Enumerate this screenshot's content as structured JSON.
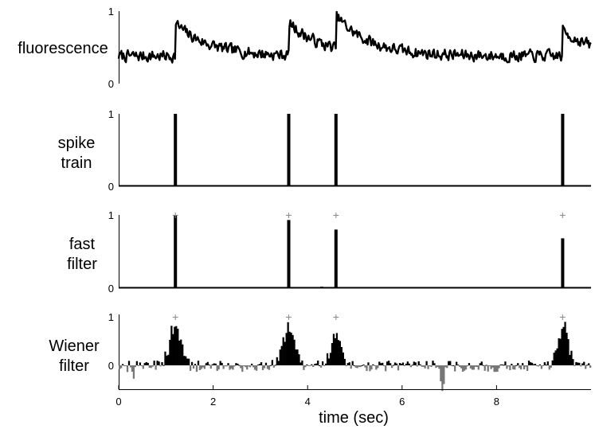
{
  "chart_data": {
    "type": "multi-panel",
    "xlabel": "time (sec)",
    "xlim": [
      0,
      10
    ],
    "xticks": [
      "0",
      "2",
      "4",
      "6",
      "8"
    ],
    "marker_symbol": "+",
    "colors": {
      "trace": "#000000",
      "negative": "#777777",
      "marker": "#888888"
    },
    "panels": [
      {
        "id": "fluorescence",
        "type": "line",
        "ylabel": [
          "fluorescence"
        ],
        "ylim": [
          0,
          1
        ],
        "yticks": [
          "0",
          "1"
        ],
        "noise_seed": 7,
        "baseline": 0.38,
        "noise_amplitude": 0.11,
        "decay_tau_sec": 0.7,
        "transients": [
          {
            "t": 1.2,
            "amp": 0.45
          },
          {
            "t": 3.6,
            "amp": 0.45
          },
          {
            "t": 4.6,
            "amp": 0.45
          },
          {
            "t": 9.4,
            "amp": 0.35
          }
        ]
      },
      {
        "id": "spike-train",
        "type": "bar",
        "ylabel": [
          "spike",
          "train"
        ],
        "ylim": [
          0,
          1
        ],
        "yticks": [
          "0",
          "1"
        ],
        "spikes": [
          {
            "t": 1.2,
            "value": 1
          },
          {
            "t": 3.6,
            "value": 1
          },
          {
            "t": 4.6,
            "value": 1
          },
          {
            "t": 9.4,
            "value": 1
          }
        ]
      },
      {
        "id": "fast-filter",
        "type": "bar",
        "ylabel": [
          "fast",
          "filter"
        ],
        "ylim": [
          0,
          1
        ],
        "yticks": [
          "0",
          "1"
        ],
        "markers_t": [
          1.2,
          3.6,
          4.6,
          9.4
        ],
        "spikes": [
          {
            "t": 1.2,
            "value": 0.99
          },
          {
            "t": 3.6,
            "value": 0.93
          },
          {
            "t": 4.3,
            "value": 0.02
          },
          {
            "t": 4.6,
            "value": 0.8
          },
          {
            "t": 9.4,
            "value": 0.68
          }
        ]
      },
      {
        "id": "wiener-filter",
        "type": "bar",
        "ylabel": [
          "Wiener",
          "filter"
        ],
        "ylim": [
          -0.55,
          1
        ],
        "yticks": [
          "0",
          "1"
        ],
        "markers_t": [
          1.2,
          3.6,
          4.6,
          9.4
        ],
        "noise_seed": 13,
        "noise_amplitude": 0.12,
        "bump_width_sec": 0.12,
        "bumps": [
          {
            "t": 1.2,
            "amp": 0.85
          },
          {
            "t": 3.6,
            "amp": 0.75
          },
          {
            "t": 4.6,
            "amp": 0.55
          },
          {
            "t": 9.4,
            "amp": 0.78
          }
        ],
        "dips": [
          {
            "t": 6.85,
            "amp": -0.5
          },
          {
            "t": 0.3,
            "amp": -0.2
          }
        ]
      }
    ]
  }
}
